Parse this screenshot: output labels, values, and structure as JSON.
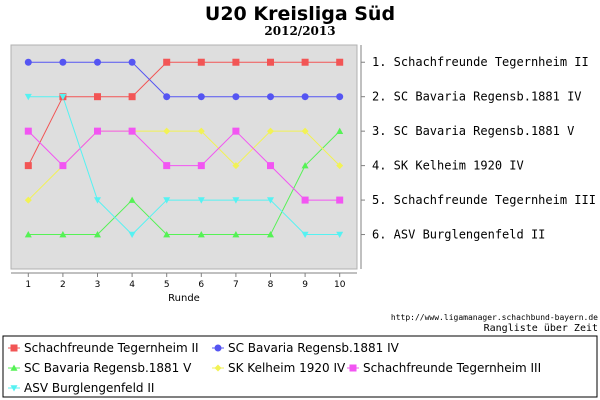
{
  "title": "U20 Kreisliga Süd",
  "subtitle": "2012/2013",
  "source_url": "http://www.ligamanager.schachbund-bayern.de",
  "footer_note": "Rangliste über Zeit",
  "chart_data": {
    "type": "line",
    "title": "U20 Kreisliga Süd",
    "subtitle": "2012/2013",
    "xlabel": "Runde",
    "ylabel": "",
    "x": [
      1,
      2,
      3,
      4,
      5,
      6,
      7,
      8,
      9,
      10
    ],
    "xlim": [
      0.5,
      10.5
    ],
    "ylim": [
      0.5,
      7.0
    ],
    "y_inverted": true,
    "grid": false,
    "legend_position": "bottom",
    "rank_labels": [
      "1. Schachfreunde Tegernheim II",
      "2. SC Bavaria Regensb.1881 IV",
      "3. SC Bavaria Regensb.1881 V",
      "4. SK Kelheim 1920 IV",
      "5. Schachfreunde Tegernheim III",
      "6. ASV Burglengenfeld II"
    ],
    "series": [
      {
        "name": "Schachfreunde Tegernheim II",
        "color": "#f25555",
        "marker": "square",
        "values": [
          4,
          2,
          2,
          2,
          1,
          1,
          1,
          1,
          1,
          1
        ]
      },
      {
        "name": "SC Bavaria Regensb.1881 IV",
        "color": "#5555f2",
        "marker": "circle",
        "values": [
          1,
          1,
          1,
          1,
          2,
          2,
          2,
          2,
          2,
          2
        ]
      },
      {
        "name": "SC Bavaria Regensb.1881 V",
        "color": "#55f255",
        "marker": "triangle-up",
        "values": [
          6,
          6,
          6,
          5,
          6,
          6,
          6,
          6,
          4,
          3
        ]
      },
      {
        "name": "SK Kelheim 1920 IV",
        "color": "#f2f255",
        "marker": "diamond",
        "values": [
          5,
          4,
          3,
          3,
          3,
          3,
          4,
          3,
          3,
          4
        ]
      },
      {
        "name": "Schachfreunde Tegernheim III",
        "color": "#f255f2",
        "marker": "square",
        "values": [
          3,
          4,
          3,
          3,
          4,
          4,
          3,
          4,
          5,
          5
        ]
      },
      {
        "name": "ASV Burglengenfeld II",
        "color": "#55f2f2",
        "marker": "triangle-down",
        "values": [
          2,
          2,
          5,
          6,
          5,
          5,
          5,
          5,
          6,
          6
        ]
      }
    ]
  }
}
